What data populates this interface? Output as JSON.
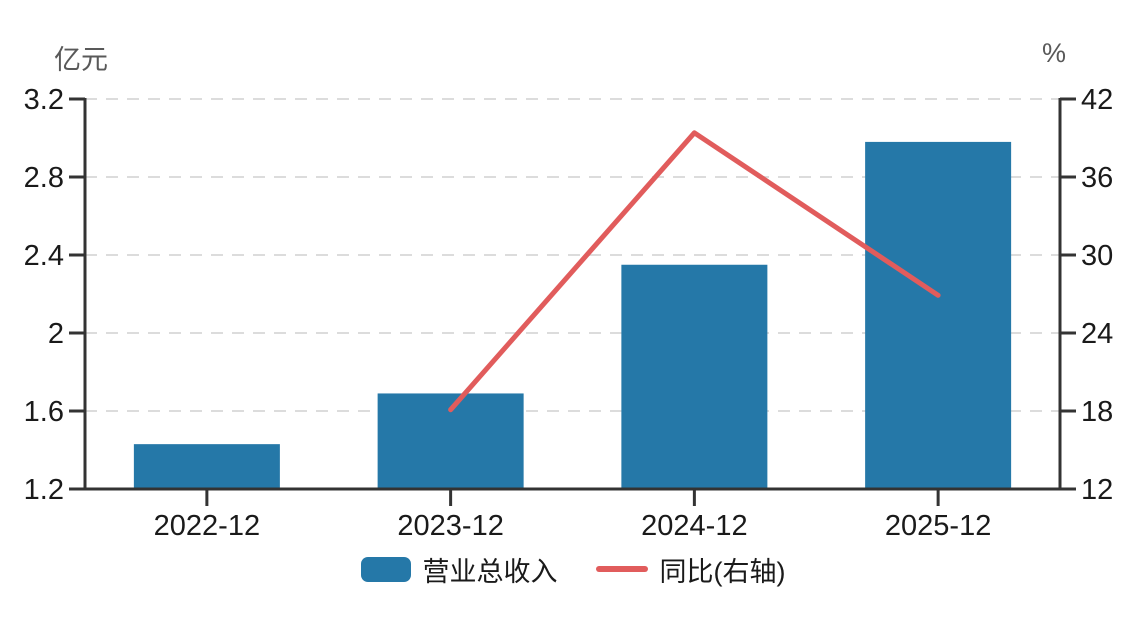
{
  "chart_data": {
    "type": "bar",
    "subtype": "combo-bar-line-dual-axis",
    "title": "",
    "categories": [
      "2022-12",
      "2023-12",
      "2024-12",
      "2025-12"
    ],
    "series": [
      {
        "name": "营业总收入",
        "type": "bar",
        "axis": "left",
        "unit": "亿元",
        "values": [
          1.43,
          1.69,
          2.35,
          2.98
        ]
      },
      {
        "name": "同比(右轴)",
        "type": "line",
        "axis": "right",
        "unit": "%",
        "values": [
          null,
          18.1,
          39.4,
          26.9
        ]
      }
    ],
    "left_axis": {
      "title": "亿元",
      "min": 1.2,
      "max": 3.2,
      "ticks": [
        1.2,
        1.6,
        2,
        2.4,
        2.8,
        3.2
      ],
      "tick_labels": [
        "1.2",
        "1.6",
        "2",
        "2.4",
        "2.8",
        "3.2"
      ]
    },
    "right_axis": {
      "title": "%",
      "min": 12,
      "max": 42,
      "ticks": [
        12,
        18,
        24,
        30,
        36,
        42
      ],
      "tick_labels": [
        "12",
        "18",
        "24",
        "30",
        "36",
        "42"
      ]
    },
    "legend": [
      {
        "label": "营业总收入",
        "swatch": "bar"
      },
      {
        "label": "同比(右轴)",
        "swatch": "line"
      }
    ],
    "grid": "horizontal-dashed",
    "legend_position": "bottom-center",
    "colors": {
      "bar": "#2578a8",
      "line": "#e15c5c",
      "grid": "#dcdcdc",
      "axis": "#333333",
      "tick_text": "#1a1a1a",
      "axis_title_text": "#595959",
      "background": "#ffffff"
    }
  }
}
